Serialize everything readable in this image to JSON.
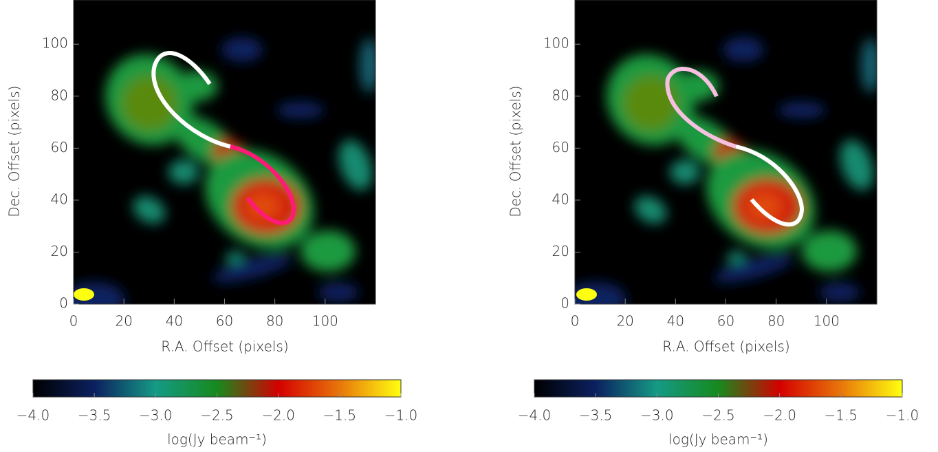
{
  "chart_data": [
    {
      "type": "image",
      "xlabel": "R.A. Offset (pixels)",
      "ylabel": "Dec. Offset (pixels)",
      "xlim": [
        0,
        120
      ],
      "ylim": [
        0,
        117
      ],
      "xticks": [
        0,
        20,
        40,
        60,
        80,
        100
      ],
      "yticks": [
        0,
        20,
        40,
        60,
        80,
        100
      ],
      "colorbar": {
        "label": "log(Jy beam⁻¹)",
        "lim": [
          -4,
          -1
        ],
        "ticks": [
          {
            "value": -4,
            "label": "−4.0"
          },
          {
            "value": -3.5,
            "label": "−3.5"
          },
          {
            "value": -3,
            "label": "−3.0"
          },
          {
            "value": -2.5,
            "label": "−2.5"
          },
          {
            "value": -2,
            "label": "−2.0"
          },
          {
            "value": -1.5,
            "label": "−1.5"
          },
          {
            "value": -1,
            "label": "−1.0"
          }
        ],
        "colormap": [
          "#000000",
          "#0b2060",
          "#159a85",
          "#168a1e",
          "#d40000",
          "#e8760a",
          "#ffff10"
        ]
      }
    },
    {
      "type": "image",
      "xlabel": "R.A. Offset (pixels)",
      "ylabel": "Dec. Offset (pixels)",
      "xlim": [
        0,
        120
      ],
      "ylim": [
        0,
        117
      ],
      "xticks": [
        0,
        20,
        40,
        60,
        80,
        100
      ],
      "yticks": [
        0,
        20,
        40,
        60,
        80,
        100
      ],
      "colorbar": {
        "label": "log(Jy beam⁻¹)",
        "lim": [
          -4,
          -1
        ],
        "ticks": [
          {
            "value": -4,
            "label": "−4.0"
          },
          {
            "value": -3.5,
            "label": "−3.5"
          },
          {
            "value": -3,
            "label": "−3.0"
          },
          {
            "value": -2.5,
            "label": "−2.5"
          },
          {
            "value": -2,
            "label": "−2.0"
          },
          {
            "value": -1.5,
            "label": "−1.5"
          },
          {
            "value": -1,
            "label": "−1.0"
          }
        ],
        "colormap": [
          "#000000",
          "#0b2060",
          "#159a85",
          "#168a1e",
          "#d40000",
          "#e8760a",
          "#ffff10"
        ]
      }
    }
  ]
}
